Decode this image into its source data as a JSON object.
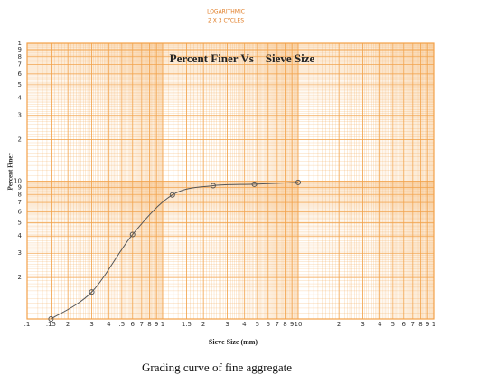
{
  "chart_data": {
    "type": "line",
    "annotations": [
      "LOGARITHMIC",
      "2 X 3 CYCLES"
    ],
    "title": "Percent Finer Vs    Sieve Size",
    "xlabel": "Sieve Size (mm)",
    "ylabel": "Percent Finer",
    "caption": "Grading curve of fine aggregate",
    "xlog": true,
    "ylog": true,
    "grid": true,
    "color": "#555555",
    "grid_color": "#f2a24a",
    "x": [
      0.15,
      0.3,
      0.6,
      1.18,
      2.36,
      4.75,
      10
    ],
    "values": [
      1.0,
      1.57,
      4.1,
      7.95,
      9.27,
      9.5,
      9.8
    ],
    "xlim": [
      0.1,
      100
    ],
    "ylim": [
      1,
      100
    ],
    "xticks": [
      {
        "value": 0.1,
        "label": ".1"
      },
      {
        "value": 0.15,
        "label": ".15"
      },
      {
        "value": 0.2,
        "label": "2"
      },
      {
        "value": 0.3,
        "label": "3"
      },
      {
        "value": 0.4,
        "label": "4"
      },
      {
        "value": 0.5,
        "label": ".5"
      },
      {
        "value": 0.6,
        "label": "6"
      },
      {
        "value": 0.7,
        "label": "7"
      },
      {
        "value": 0.8,
        "label": "8"
      },
      {
        "value": 0.9,
        "label": "9"
      },
      1,
      1.5,
      2,
      3,
      4,
      5,
      6,
      7,
      8,
      9,
      10,
      {
        "value": 20,
        "label": "2"
      },
      {
        "value": 30,
        "label": "3"
      },
      {
        "value": 40,
        "label": "4"
      },
      {
        "value": 50,
        "label": "5"
      },
      {
        "value": 60,
        "label": "6"
      },
      {
        "value": 70,
        "label": "7"
      },
      {
        "value": 80,
        "label": "8"
      },
      {
        "value": 90,
        "label": "9"
      },
      {
        "value": 100,
        "label": "1"
      }
    ],
    "yticks": [
      2,
      3,
      4,
      5,
      6,
      7,
      8,
      9,
      10,
      {
        "value": 20,
        "label": "2"
      },
      {
        "value": 30,
        "label": "3"
      },
      {
        "value": 40,
        "label": "4"
      },
      {
        "value": 50,
        "label": "5"
      },
      {
        "value": 60,
        "label": "6"
      },
      {
        "value": 70,
        "label": "7"
      },
      {
        "value": 80,
        "label": "8"
      },
      {
        "value": 90,
        "label": "9"
      },
      {
        "value": 100,
        "label": "1"
      }
    ]
  }
}
